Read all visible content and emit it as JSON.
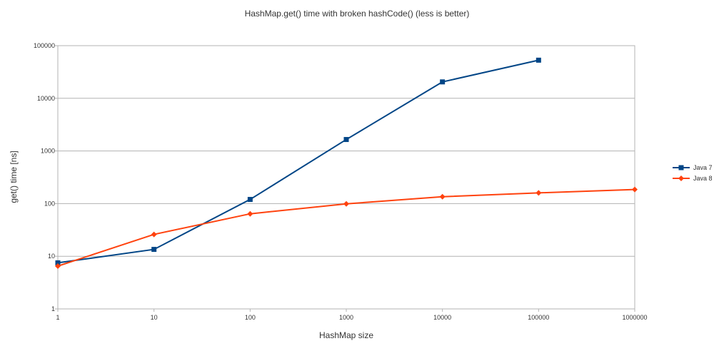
{
  "chart_data": {
    "type": "line",
    "title": "HashMap.get() time with broken hashCode() (less is better)",
    "xlabel": "HashMap size",
    "ylabel": "get() time [ns]",
    "x_scale": "log",
    "y_scale": "log",
    "x": [
      1,
      10,
      100,
      1000,
      10000,
      100000,
      1000000
    ],
    "x_tick_labels": [
      "1",
      "10",
      "100",
      "1000",
      "10000",
      "100000",
      "1000000"
    ],
    "ylim": [
      1,
      100000
    ],
    "y_tick_labels": [
      "1",
      "10",
      "100",
      "1000",
      "10000",
      "100000"
    ],
    "grid": true,
    "legend_position": "right",
    "series": [
      {
        "name": "Java 7",
        "color": "#004586",
        "marker": "square",
        "values": [
          7.5,
          13.5,
          120,
          1650,
          20500,
          53000,
          null
        ]
      },
      {
        "name": "Java 8",
        "color": "#ff420e",
        "marker": "diamond",
        "values": [
          6.5,
          26,
          64,
          99,
          135,
          160,
          185
        ]
      }
    ]
  }
}
